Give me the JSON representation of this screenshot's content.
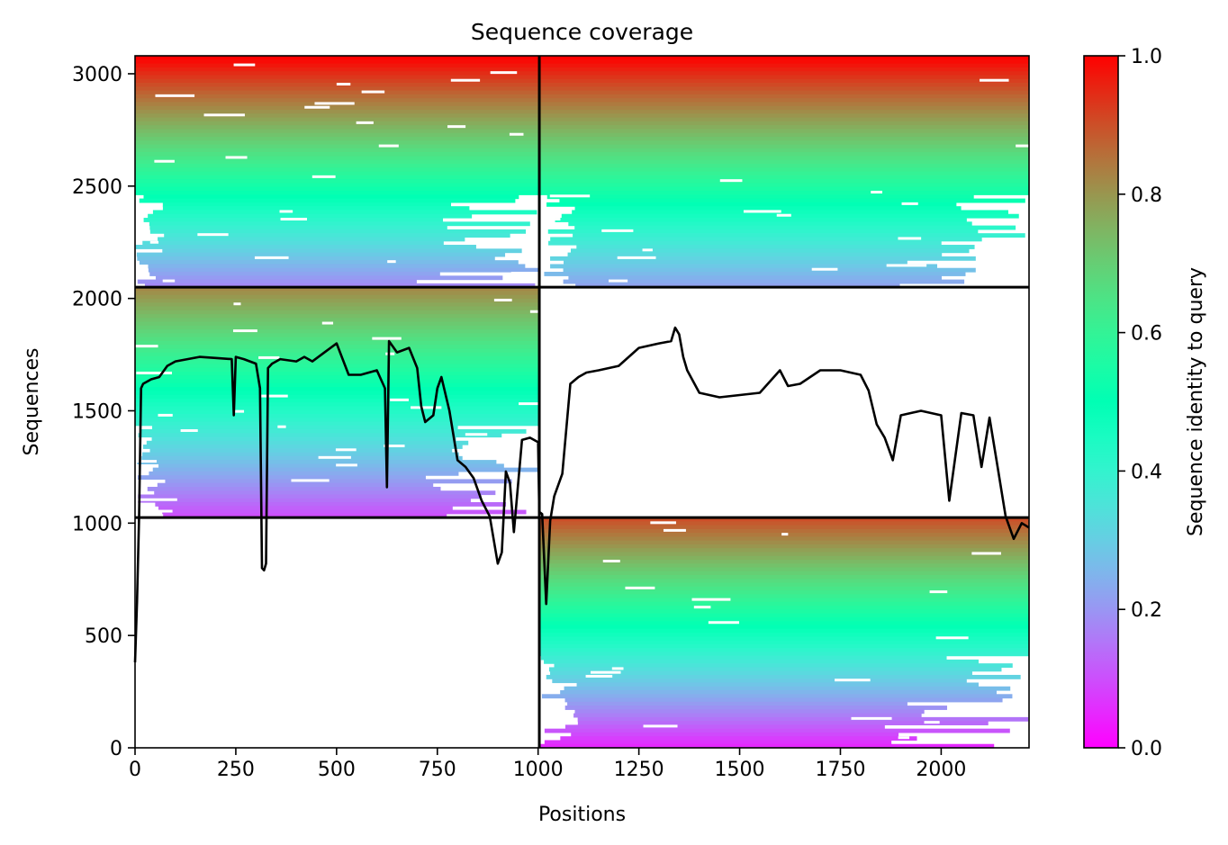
{
  "chart_data": {
    "type": "heatmap",
    "title": "Sequence coverage",
    "xlabel": "Positions",
    "ylabel": "Sequences",
    "colorbar_label": "Sequence identity to query",
    "colormap": "rainbow_r",
    "xlim": [
      0,
      2218
    ],
    "ylim": [
      0,
      3080
    ],
    "x_ticks": [
      {
        "value": 0,
        "label": "0"
      },
      {
        "value": 250,
        "label": "250"
      },
      {
        "value": 500,
        "label": "500"
      },
      {
        "value": 750,
        "label": "750"
      },
      {
        "value": 1000,
        "label": "1000"
      },
      {
        "value": 1250,
        "label": "1250"
      },
      {
        "value": 1500,
        "label": "1500"
      },
      {
        "value": 1750,
        "label": "1750"
      },
      {
        "value": 2000,
        "label": "2000"
      }
    ],
    "y_ticks": [
      {
        "value": 0,
        "label": "0"
      },
      {
        "value": 500,
        "label": "500"
      },
      {
        "value": 1000,
        "label": "1000"
      },
      {
        "value": 1500,
        "label": "1500"
      },
      {
        "value": 2000,
        "label": "2000"
      },
      {
        "value": 2500,
        "label": "2500"
      },
      {
        "value": 3000,
        "label": "3000"
      }
    ],
    "colorbar_range": [
      0,
      1
    ],
    "colorbar_ticks": [
      {
        "value": 0.0,
        "label": "0.0"
      },
      {
        "value": 0.2,
        "label": "0.2"
      },
      {
        "value": 0.4,
        "label": "0.4"
      },
      {
        "value": 0.6,
        "label": "0.6"
      },
      {
        "value": 0.8,
        "label": "0.8"
      },
      {
        "value": 1.0,
        "label": "1.0"
      }
    ],
    "chain_boundaries": {
      "x": 1003,
      "y": [
        1025,
        2050
      ]
    },
    "blocks": [
      {
        "name": "block-left-upper",
        "x": [
          0,
          1003
        ],
        "y": [
          2050,
          3080
        ],
        "identity_top": 1.0,
        "identity_bottom": 0.18
      },
      {
        "name": "block-right-upper",
        "x": [
          1003,
          2218
        ],
        "y": [
          2050,
          3080
        ],
        "identity_top": 1.0,
        "identity_bottom": 0.22
      },
      {
        "name": "block-left-middle",
        "x": [
          0,
          1003
        ],
        "y": [
          1025,
          2050
        ],
        "identity_top": 0.82,
        "identity_bottom": 0.1
      },
      {
        "name": "block-right-lower",
        "x": [
          1003,
          2218
        ],
        "y": [
          0,
          1025
        ],
        "identity_top": 0.9,
        "identity_bottom": 0.05
      }
    ],
    "coverage_line": {
      "x": [
        0,
        5,
        10,
        15,
        20,
        40,
        60,
        80,
        100,
        130,
        160,
        200,
        240,
        245,
        250,
        270,
        300,
        310,
        315,
        320,
        325,
        330,
        340,
        360,
        400,
        420,
        440,
        470,
        500,
        530,
        560,
        600,
        620,
        625,
        630,
        650,
        680,
        700,
        710,
        720,
        740,
        750,
        760,
        780,
        800,
        820,
        840,
        860,
        880,
        900,
        910,
        920,
        930,
        940,
        960,
        980,
        1000,
        1003,
        1010,
        1020,
        1030,
        1040,
        1060,
        1080,
        1100,
        1120,
        1150,
        1200,
        1250,
        1300,
        1330,
        1340,
        1350,
        1360,
        1370,
        1400,
        1450,
        1500,
        1550,
        1560,
        1600,
        1620,
        1650,
        1700,
        1750,
        1800,
        1820,
        1840,
        1860,
        1880,
        1900,
        1950,
        2000,
        2020,
        2050,
        2080,
        2100,
        2120,
        2140,
        2160,
        2180,
        2200,
        2218
      ],
      "y": [
        380,
        650,
        1030,
        1600,
        1620,
        1640,
        1650,
        1700,
        1720,
        1730,
        1740,
        1735,
        1730,
        1480,
        1740,
        1730,
        1710,
        1600,
        800,
        790,
        820,
        1690,
        1710,
        1730,
        1720,
        1740,
        1720,
        1760,
        1800,
        1660,
        1660,
        1680,
        1600,
        1160,
        1810,
        1760,
        1780,
        1690,
        1520,
        1450,
        1480,
        1600,
        1650,
        1500,
        1280,
        1250,
        1200,
        1100,
        1030,
        820,
        870,
        1230,
        1180,
        960,
        1370,
        1380,
        1360,
        1050,
        1040,
        640,
        1010,
        1120,
        1220,
        1620,
        1650,
        1670,
        1680,
        1700,
        1780,
        1800,
        1810,
        1870,
        1840,
        1740,
        1680,
        1580,
        1560,
        1570,
        1580,
        1600,
        1680,
        1610,
        1620,
        1680,
        1680,
        1660,
        1590,
        1440,
        1380,
        1280,
        1480,
        1500,
        1480,
        1100,
        1490,
        1480,
        1250,
        1470,
        1250,
        1030,
        930,
        1000,
        980
      ]
    }
  }
}
